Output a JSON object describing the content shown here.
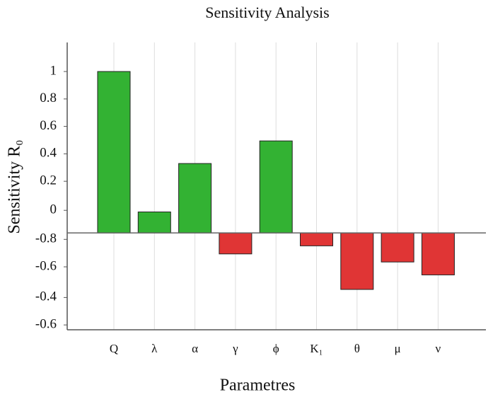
{
  "chart_data": {
    "type": "bar",
    "title": "Sensitivity Analysis",
    "xlabel": "Parametres",
    "ylabel": "Sensitivity R₀",
    "categories": [
      "Q",
      "λ",
      "α",
      "γ",
      "ϕ",
      "K₁",
      "θ",
      "μ",
      "ν"
    ],
    "values": [
      1.0,
      0.13,
      0.43,
      -0.13,
      0.57,
      -0.08,
      -0.35,
      -0.18,
      -0.26
    ],
    "positive_color": "#33b233",
    "negative_color": "#e03535",
    "ylim": [
      -0.6,
      1.18
    ],
    "yticks": [
      1,
      {
        "value": 0.83,
        "label": "0.8"
      },
      {
        "value": 0.66,
        "label": "0.6"
      },
      {
        "value": 0.49,
        "label": "0.4"
      },
      {
        "value": 0.32,
        "label": "0.2"
      },
      {
        "value": 0.14,
        "label": "0"
      },
      {
        "value": -0.04,
        "label": "-0.8"
      },
      {
        "value": -0.21,
        "label": "-0.6"
      },
      {
        "value": -0.4,
        "label": "-0.4"
      },
      {
        "value": -0.57,
        "label": "-0.6"
      }
    ],
    "grid": "x"
  }
}
